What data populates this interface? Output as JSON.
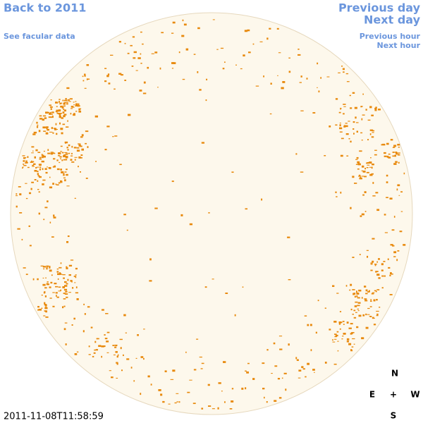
{
  "links": {
    "back": "Back to 2011",
    "facular": "See facular data",
    "previous_day": "Previous day",
    "next_day": "Next day",
    "previous_hour": "Previous hour",
    "next_hour": "Next hour"
  },
  "compass": {
    "north": "N",
    "east": "E",
    "center": "+",
    "west": "W",
    "south": "S"
  },
  "timestamp": "2011-11-08T11:58:59"
}
